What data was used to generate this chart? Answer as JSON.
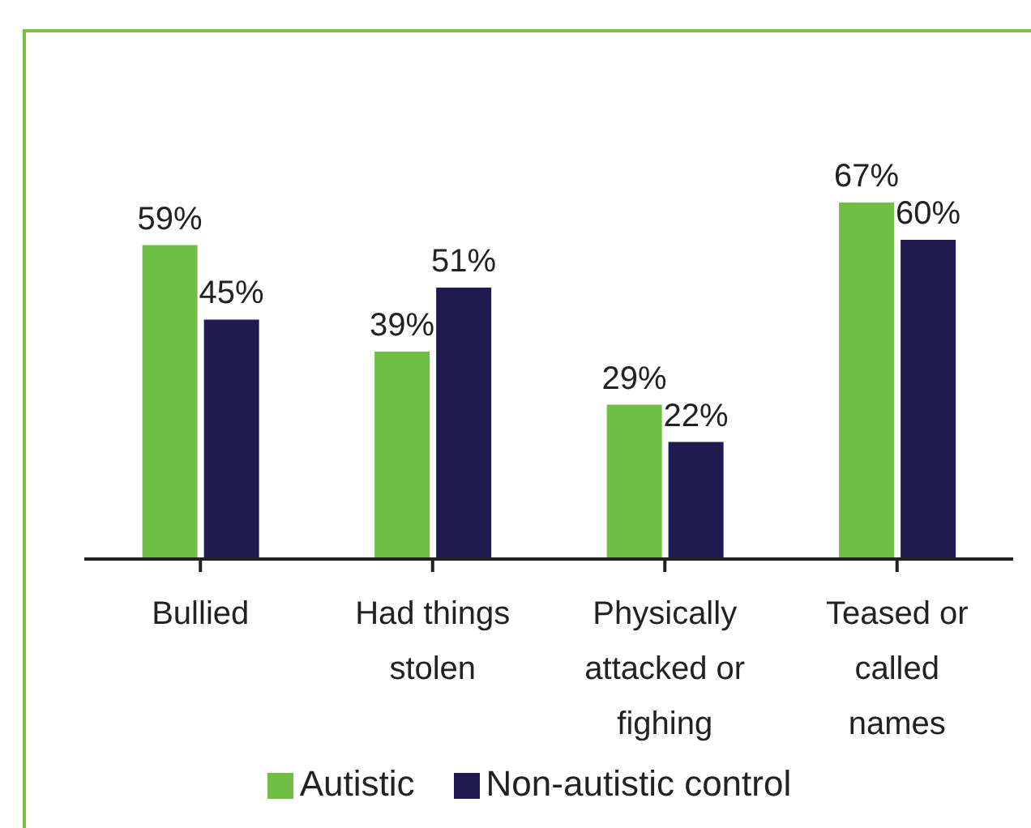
{
  "chart_data": {
    "type": "bar",
    "categories": [
      "Bullied",
      "Had things stolen",
      "Physically attacked or fighing",
      "Teased or called names"
    ],
    "series": [
      {
        "name": "Autistic",
        "color": "#70bf44",
        "values": [
          59,
          39,
          29,
          67
        ],
        "value_labels": [
          "59%",
          "39%",
          "29%",
          "67%"
        ]
      },
      {
        "name": "Non-autistic control",
        "color": "#1f1a4f",
        "values": [
          45,
          51,
          22,
          60
        ],
        "value_labels": [
          "45%",
          "51%",
          "22%",
          "60%"
        ]
      }
    ],
    "tick_labels": "x",
    "legend": "bottom",
    "grid": false
  }
}
